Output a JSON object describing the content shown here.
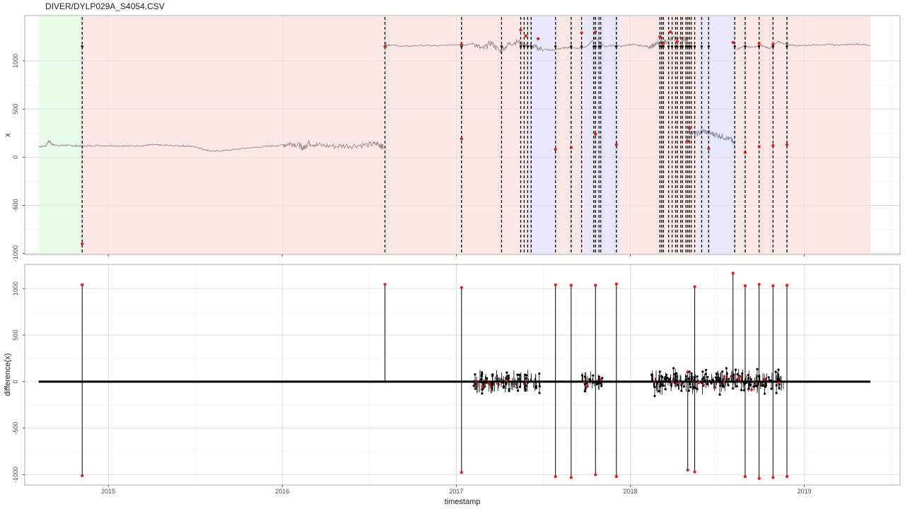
{
  "title": "DIVER/DYLP029A_S4054.CSV",
  "chart_data": [
    {
      "type": "line",
      "panel": "top",
      "title": "DIVER/DYLP029A_S4054.CSV",
      "xlabel": "",
      "ylabel": "x",
      "xlim": [
        2014.52,
        2019.55
      ],
      "ylim": [
        -1010,
        1470
      ],
      "yticks": [
        -1000,
        -500,
        0,
        500,
        1000
      ],
      "background_bands": [
        {
          "from": 2014.6,
          "to": 2014.85,
          "color": "#e5fde5"
        },
        {
          "from": 2014.85,
          "to": 2017.42,
          "color": "#fde5e5"
        },
        {
          "from": 2017.42,
          "to": 2017.57,
          "color": "#e5e5fd"
        },
        {
          "from": 2017.57,
          "to": 2017.73,
          "color": "#fde5e5"
        },
        {
          "from": 2017.73,
          "to": 2017.94,
          "color": "#e5e5fd"
        },
        {
          "from": 2017.94,
          "to": 2018.39,
          "color": "#fde5e5"
        },
        {
          "from": 2018.39,
          "to": 2018.6,
          "color": "#e5e5fd"
        },
        {
          "from": 2018.6,
          "to": 2019.38,
          "color": "#fde5e5"
        }
      ],
      "change_points": [
        2014.85,
        2016.59,
        2017.03,
        2017.26,
        2017.37,
        2017.39,
        2017.41,
        2017.43,
        2017.57,
        2017.66,
        2017.72,
        2017.79,
        2017.8,
        2017.82,
        2017.83,
        2017.92,
        2018.17,
        2018.18,
        2018.19,
        2018.22,
        2018.24,
        2018.26,
        2018.27,
        2018.29,
        2018.3,
        2018.32,
        2018.33,
        2018.34,
        2018.35,
        2018.37,
        2018.41,
        2018.45,
        2018.6,
        2018.66,
        2018.74,
        2018.82,
        2018.9
      ],
      "series": [
        {
          "color": "#9e8e8e",
          "x": [
            2014.6,
            2014.64,
            2014.66,
            2014.68,
            2014.72,
            2014.76,
            2014.8,
            2014.85,
            2014.9,
            2015.0,
            2015.1,
            2015.2,
            2015.25,
            2015.3,
            2015.4,
            2015.45,
            2015.5,
            2015.55,
            2015.6,
            2015.7,
            2015.8,
            2015.9,
            2016.0,
            2016.05,
            2016.1,
            2016.12,
            2016.15,
            2016.2,
            2016.3,
            2016.4,
            2016.5,
            2016.55,
            2016.57,
            2016.58
          ],
          "y": [
            110,
            115,
            170,
            130,
            120,
            125,
            118,
            115,
            120,
            120,
            115,
            120,
            130,
            125,
            118,
            115,
            110,
            80,
            60,
            75,
            95,
            110,
            125,
            145,
            120,
            90,
            150,
            125,
            115,
            120,
            130,
            140,
            110,
            115
          ]
        },
        {
          "color": "#9e8e8e",
          "x": [
            2016.59,
            2016.62,
            2016.7,
            2016.8,
            2016.9,
            2017.0,
            2017.05,
            2017.1,
            2017.15,
            2017.2,
            2017.25,
            2017.3,
            2017.35,
            2017.4,
            2017.45,
            2017.5,
            2017.55,
            2017.6,
            2017.65,
            2017.7,
            2017.75,
            2017.8,
            2017.85,
            2017.9,
            2017.95,
            2018.0,
            2018.05,
            2018.1,
            2018.15,
            2018.2,
            2018.25,
            2018.3,
            2018.33
          ],
          "y": [
            1160,
            1165,
            1150,
            1160,
            1155,
            1170,
            1165,
            1180,
            1120,
            1190,
            1100,
            1170,
            1200,
            1160,
            1140,
            1120,
            1110,
            1130,
            1140,
            1130,
            1150,
            1240,
            1150,
            1160,
            1150,
            1170,
            1160,
            1150,
            1170,
            1200,
            1230,
            1230,
            1220
          ]
        },
        {
          "color": "#8a8ab0",
          "x": [
            2018.34,
            2018.38,
            2018.42,
            2018.46,
            2018.5,
            2018.54,
            2018.58,
            2018.6
          ],
          "y": [
            260,
            240,
            270,
            250,
            230,
            210,
            180,
            130
          ]
        },
        {
          "color": "#9e8e8e",
          "x": [
            2018.61,
            2018.65,
            2018.7,
            2018.75,
            2018.8,
            2018.85,
            2018.9,
            2018.95,
            2019.0,
            2019.1,
            2019.2,
            2019.3,
            2019.38
          ],
          "y": [
            1120,
            1150,
            1140,
            1160,
            1130,
            1200,
            1170,
            1160,
            1160,
            1170,
            1165,
            1175,
            1160
          ]
        }
      ],
      "outliers_red": [
        {
          "x": 2014.85,
          "y": -900
        },
        {
          "x": 2016.59,
          "y": 1150
        },
        {
          "x": 2017.03,
          "y": 190
        },
        {
          "x": 2017.03,
          "y": 1170
        },
        {
          "x": 2017.37,
          "y": 1320
        },
        {
          "x": 2017.4,
          "y": 1260
        },
        {
          "x": 2017.47,
          "y": 1230
        },
        {
          "x": 2017.57,
          "y": 80
        },
        {
          "x": 2017.66,
          "y": 100
        },
        {
          "x": 2017.72,
          "y": 1290
        },
        {
          "x": 2017.8,
          "y": 1300
        },
        {
          "x": 2017.8,
          "y": 240
        },
        {
          "x": 2017.92,
          "y": 130
        },
        {
          "x": 2018.17,
          "y": 1250
        },
        {
          "x": 2018.19,
          "y": 1180
        },
        {
          "x": 2018.23,
          "y": 1300
        },
        {
          "x": 2018.27,
          "y": 1200
        },
        {
          "x": 2018.33,
          "y": 170
        },
        {
          "x": 2018.34,
          "y": 300
        },
        {
          "x": 2018.45,
          "y": 90
        },
        {
          "x": 2018.59,
          "y": 1190
        },
        {
          "x": 2018.66,
          "y": 50
        },
        {
          "x": 2018.74,
          "y": 110
        },
        {
          "x": 2018.74,
          "y": 1180
        },
        {
          "x": 2018.82,
          "y": 120
        },
        {
          "x": 2018.82,
          "y": 1170
        },
        {
          "x": 2018.9,
          "y": 130
        }
      ]
    },
    {
      "type": "line",
      "panel": "bottom",
      "xlabel": "timestamp",
      "ylabel": "difference(x)",
      "xlim": [
        2014.52,
        2019.55
      ],
      "ylim": [
        -1110,
        1260
      ],
      "yticks": [
        -1000,
        -500,
        0,
        500,
        1000
      ],
      "xtick_positions": [
        2015,
        2016,
        2017,
        2018,
        2019
      ],
      "xtick_labels": [
        "2015",
        "2016",
        "2017",
        "2018",
        "2019"
      ],
      "spikes": [
        {
          "x": 2014.85,
          "y": 1040
        },
        {
          "x": 2014.85,
          "y": -1010
        },
        {
          "x": 2016.59,
          "y": 1045
        },
        {
          "x": 2017.03,
          "y": 1010
        },
        {
          "x": 2017.03,
          "y": -975
        },
        {
          "x": 2017.57,
          "y": 1040
        },
        {
          "x": 2017.57,
          "y": -1020
        },
        {
          "x": 2017.66,
          "y": 1035
        },
        {
          "x": 2017.66,
          "y": -1030
        },
        {
          "x": 2017.8,
          "y": 1035
        },
        {
          "x": 2017.8,
          "y": -1000
        },
        {
          "x": 2017.92,
          "y": 1050
        },
        {
          "x": 2017.92,
          "y": -1020
        },
        {
          "x": 2018.33,
          "y": -950
        },
        {
          "x": 2018.37,
          "y": 1020
        },
        {
          "x": 2018.37,
          "y": -970
        },
        {
          "x": 2018.59,
          "y": 1165
        },
        {
          "x": 2018.66,
          "y": 1030
        },
        {
          "x": 2018.66,
          "y": -1020
        },
        {
          "x": 2018.74,
          "y": 1045
        },
        {
          "x": 2018.74,
          "y": -1040
        },
        {
          "x": 2018.82,
          "y": 1030
        },
        {
          "x": 2018.82,
          "y": -1030
        },
        {
          "x": 2018.9,
          "y": 1035
        },
        {
          "x": 2018.9,
          "y": -1020
        }
      ],
      "noise_clusters": [
        {
          "from": 2017.1,
          "to": 2017.48,
          "amp": 150
        },
        {
          "from": 2017.72,
          "to": 2017.84,
          "amp": 120
        },
        {
          "from": 2018.12,
          "to": 2018.88,
          "amp": 170
        }
      ]
    }
  ]
}
